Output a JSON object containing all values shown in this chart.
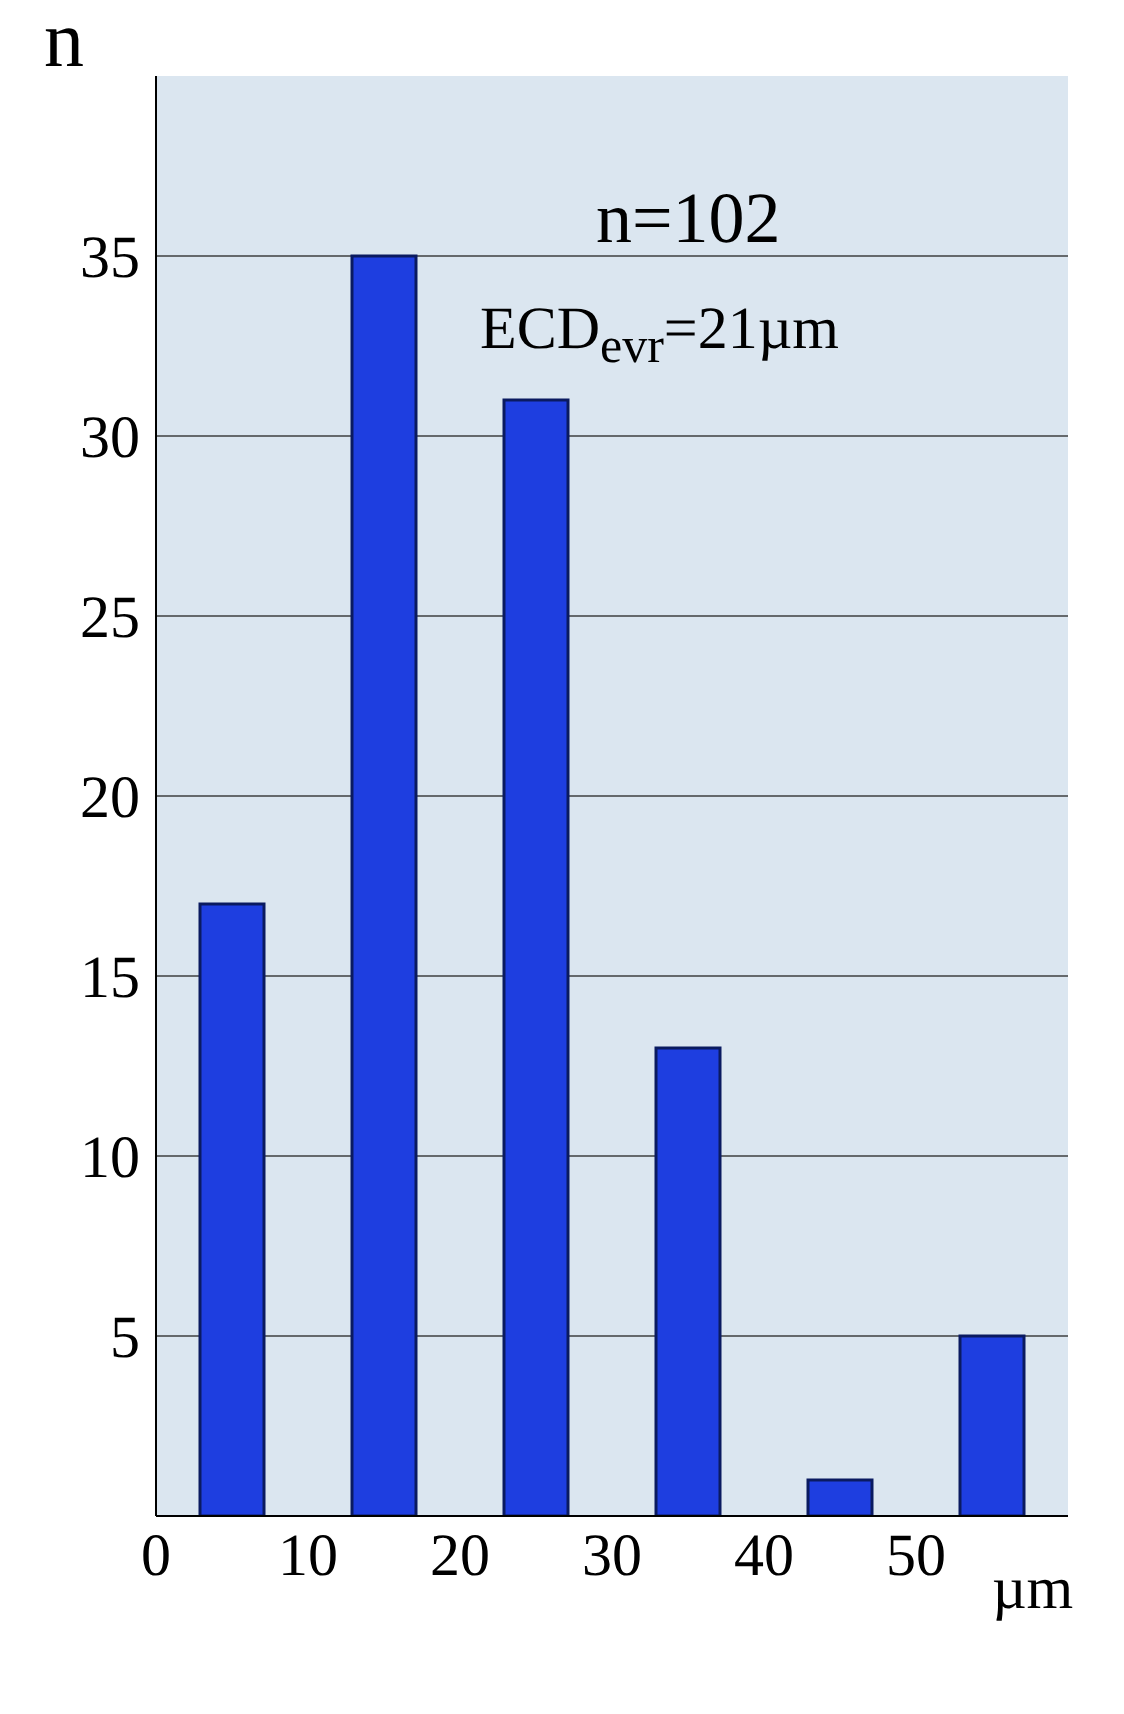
{
  "chart_data": {
    "type": "bar",
    "ylabel": "n",
    "xlabel": "µm",
    "x": [
      5,
      15,
      25,
      35,
      45,
      55
    ],
    "values": [
      17,
      35,
      31,
      13,
      1,
      5
    ],
    "color": "#1e3ee0",
    "xlim": [
      0,
      60
    ],
    "xticks": [
      0,
      10,
      20,
      30,
      40,
      50
    ],
    "ylim": [
      0,
      40
    ],
    "yticks": [
      5,
      10,
      15,
      20,
      25,
      30,
      35
    ],
    "grid": "y",
    "annotations": [
      "n=102",
      "ECD$_{evr}$=21µm"
    ]
  }
}
